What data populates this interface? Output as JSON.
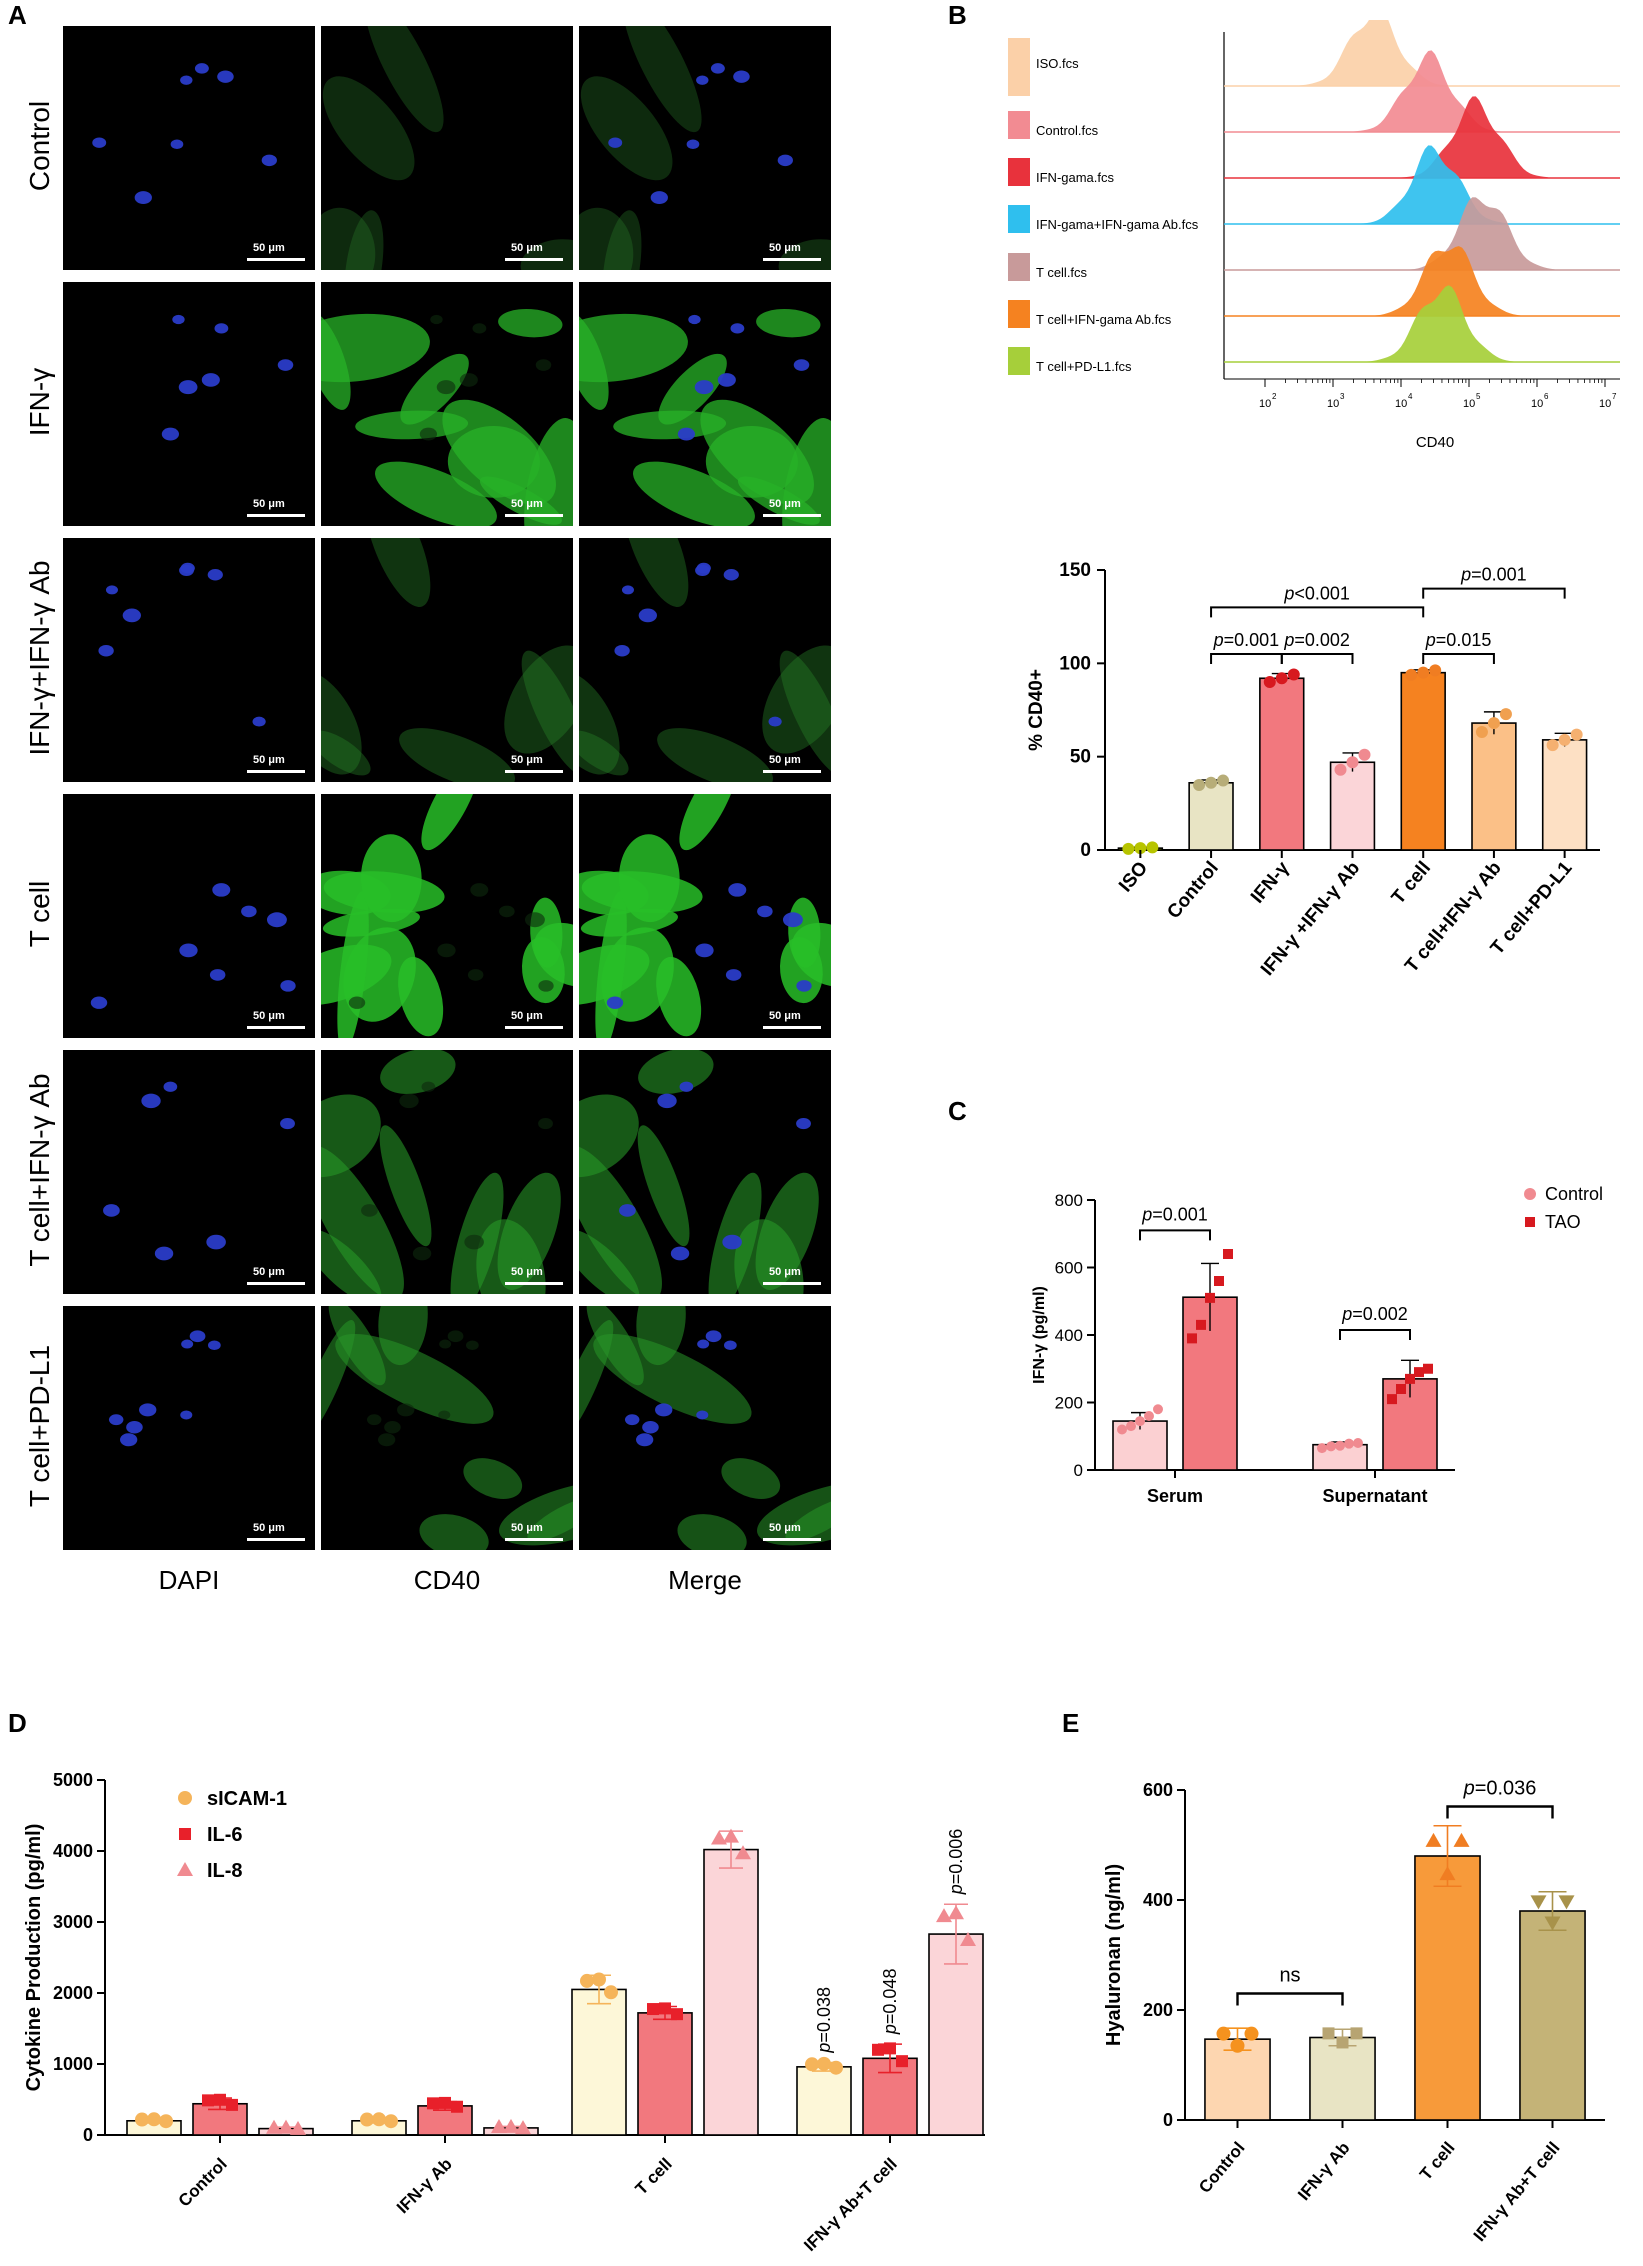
{
  "panels": {
    "A": "A",
    "B": "B",
    "C": "C",
    "D": "D",
    "E": "E"
  },
  "panelA": {
    "rows": [
      "Control",
      "IFN-γ",
      "IFN-γ+IFN-γ Ab",
      "T cell",
      "T cell+IFN-γ Ab",
      "T cell+PD-L1"
    ],
    "columns": [
      "DAPI",
      "CD40",
      "Merge"
    ],
    "scale_label": "50 μm"
  },
  "panelB_flow": {
    "samples": [
      {
        "label": "ISO.fcs",
        "color": "#fbd0a8"
      },
      {
        "label": "Control.fcs",
        "color": "#f28b92"
      },
      {
        "label": "IFN-gama.fcs",
        "color": "#e8323c"
      },
      {
        "label": "IFN-gama+IFN-gama Ab.fcs",
        "color": "#2fbfee"
      },
      {
        "label": "T cell.fcs",
        "color": "#c89a9a"
      },
      {
        "label": "T cell+IFN-gama Ab.fcs",
        "color": "#f58220"
      },
      {
        "label": "T cell+PD-L1.fcs",
        "color": "#a6cf3a"
      }
    ],
    "xlabel": "CD40",
    "peaks_log10": [
      3.6,
      4.4,
      5.1,
      4.5,
      5.2,
      4.7,
      4.6
    ],
    "ticks": [
      "10",
      "10",
      "10",
      "10",
      "10",
      "10"
    ],
    "tick_exps": [
      "2",
      "3",
      "4",
      "5",
      "6",
      "7"
    ]
  },
  "chart_data": [
    {
      "id": "B-bar",
      "type": "bar",
      "categories": [
        "ISO",
        "Control",
        "IFN-γ",
        "IFN-γ +IFN-γ Ab",
        "T  cell",
        "T cell+IFN-γ Ab",
        "T cell+PD-L1"
      ],
      "values": [
        1,
        36,
        92,
        47,
        95,
        68,
        59
      ],
      "errors": [
        0.5,
        1.5,
        2.5,
        5,
        1.5,
        6,
        3.5
      ],
      "colors": [
        "#c8d600",
        "#e8e4c4",
        "#f2787e",
        "#fbd5d8",
        "#f58220",
        "#fbc087",
        "#fde0c4"
      ],
      "marker_colors": [
        "#b7c400",
        "#b7ad78",
        "#d7191f",
        "#f08a90",
        "#f07d22",
        "#f0a050",
        "#f5b070"
      ],
      "ylabel": "% CD40+",
      "yticks": [
        "0",
        "50",
        "100",
        "150"
      ],
      "ylim": [
        0,
        150
      ],
      "annotations": [
        {
          "text": "p<0.001",
          "pval": "<0.001"
        },
        {
          "text": "p=0.001",
          "pval": "=0.001"
        },
        {
          "text": "p=0.002",
          "pval": "=0.002"
        },
        {
          "text": "p=0.001",
          "pval": "=0.001"
        },
        {
          "text": "p=0.015",
          "pval": "=0.015"
        }
      ]
    },
    {
      "id": "C",
      "type": "bar",
      "categories": [
        "Serum",
        "Supernatant"
      ],
      "series": [
        {
          "name": "Control",
          "values": [
            145,
            75
          ],
          "errors": [
            25,
            8
          ],
          "points": [
            [
              120,
              130,
              145,
              160,
              180
            ],
            [
              65,
              70,
              72,
              78,
              80
            ]
          ]
        },
        {
          "name": "TAO",
          "values": [
            512,
            270
          ],
          "errors": [
            100,
            55
          ],
          "points": [
            [
              390,
              430,
              510,
              560,
              640
            ],
            [
              210,
              240,
              270,
              290,
              300
            ]
          ]
        }
      ],
      "ylabel": "IFN-γ (pg/ml)",
      "yticks": [
        "0",
        "200",
        "400",
        "600",
        "800"
      ],
      "ylim": [
        0,
        800
      ],
      "annotations": [
        {
          "text": "p=0.001",
          "pval": "=0.001"
        },
        {
          "text": "p=0.002",
          "pval": "=0.002"
        }
      ]
    },
    {
      "id": "D",
      "type": "bar",
      "categories": [
        "Control",
        "IFN-γ Ab",
        "T cell",
        "IFN-γ Ab+T cell"
      ],
      "series": [
        {
          "name": "sICAM-1",
          "values": [
            200,
            200,
            2050,
            960
          ],
          "errors": [
            30,
            30,
            200,
            60
          ]
        },
        {
          "name": "IL-6",
          "values": [
            440,
            410,
            1720,
            1080
          ],
          "errors": [
            80,
            60,
            90,
            200
          ]
        },
        {
          "name": "IL-8",
          "values": [
            90,
            100,
            4020,
            2830
          ],
          "errors": [
            20,
            20,
            260,
            420
          ]
        }
      ],
      "ylabel": "Cytokine Production (pg/ml)",
      "yticks": [
        "0",
        "1000",
        "2000",
        "3000",
        "4000",
        "5000"
      ],
      "ylim": [
        0,
        5000
      ],
      "annotations": [
        {
          "text": "p=0.038",
          "pval": "=0.038"
        },
        {
          "text": "p=0.048",
          "pval": "=0.048"
        },
        {
          "text": "p=0.006",
          "pval": "=0.006"
        }
      ]
    },
    {
      "id": "E",
      "type": "bar",
      "categories": [
        "Control",
        "IFN-γ Ab",
        "T cell",
        "IFN-γ Ab+T cell"
      ],
      "values": [
        147,
        150,
        480,
        380
      ],
      "errors": [
        20,
        15,
        55,
        35
      ],
      "ylabel": "Hyaluronan (ng/ml)",
      "yticks": [
        "0",
        "200",
        "400",
        "600"
      ],
      "ylim": [
        0,
        600
      ],
      "annotations": [
        {
          "text": "ns",
          "pval": ""
        },
        {
          "text": "p=0.036",
          "pval": "=0.036"
        }
      ]
    }
  ]
}
